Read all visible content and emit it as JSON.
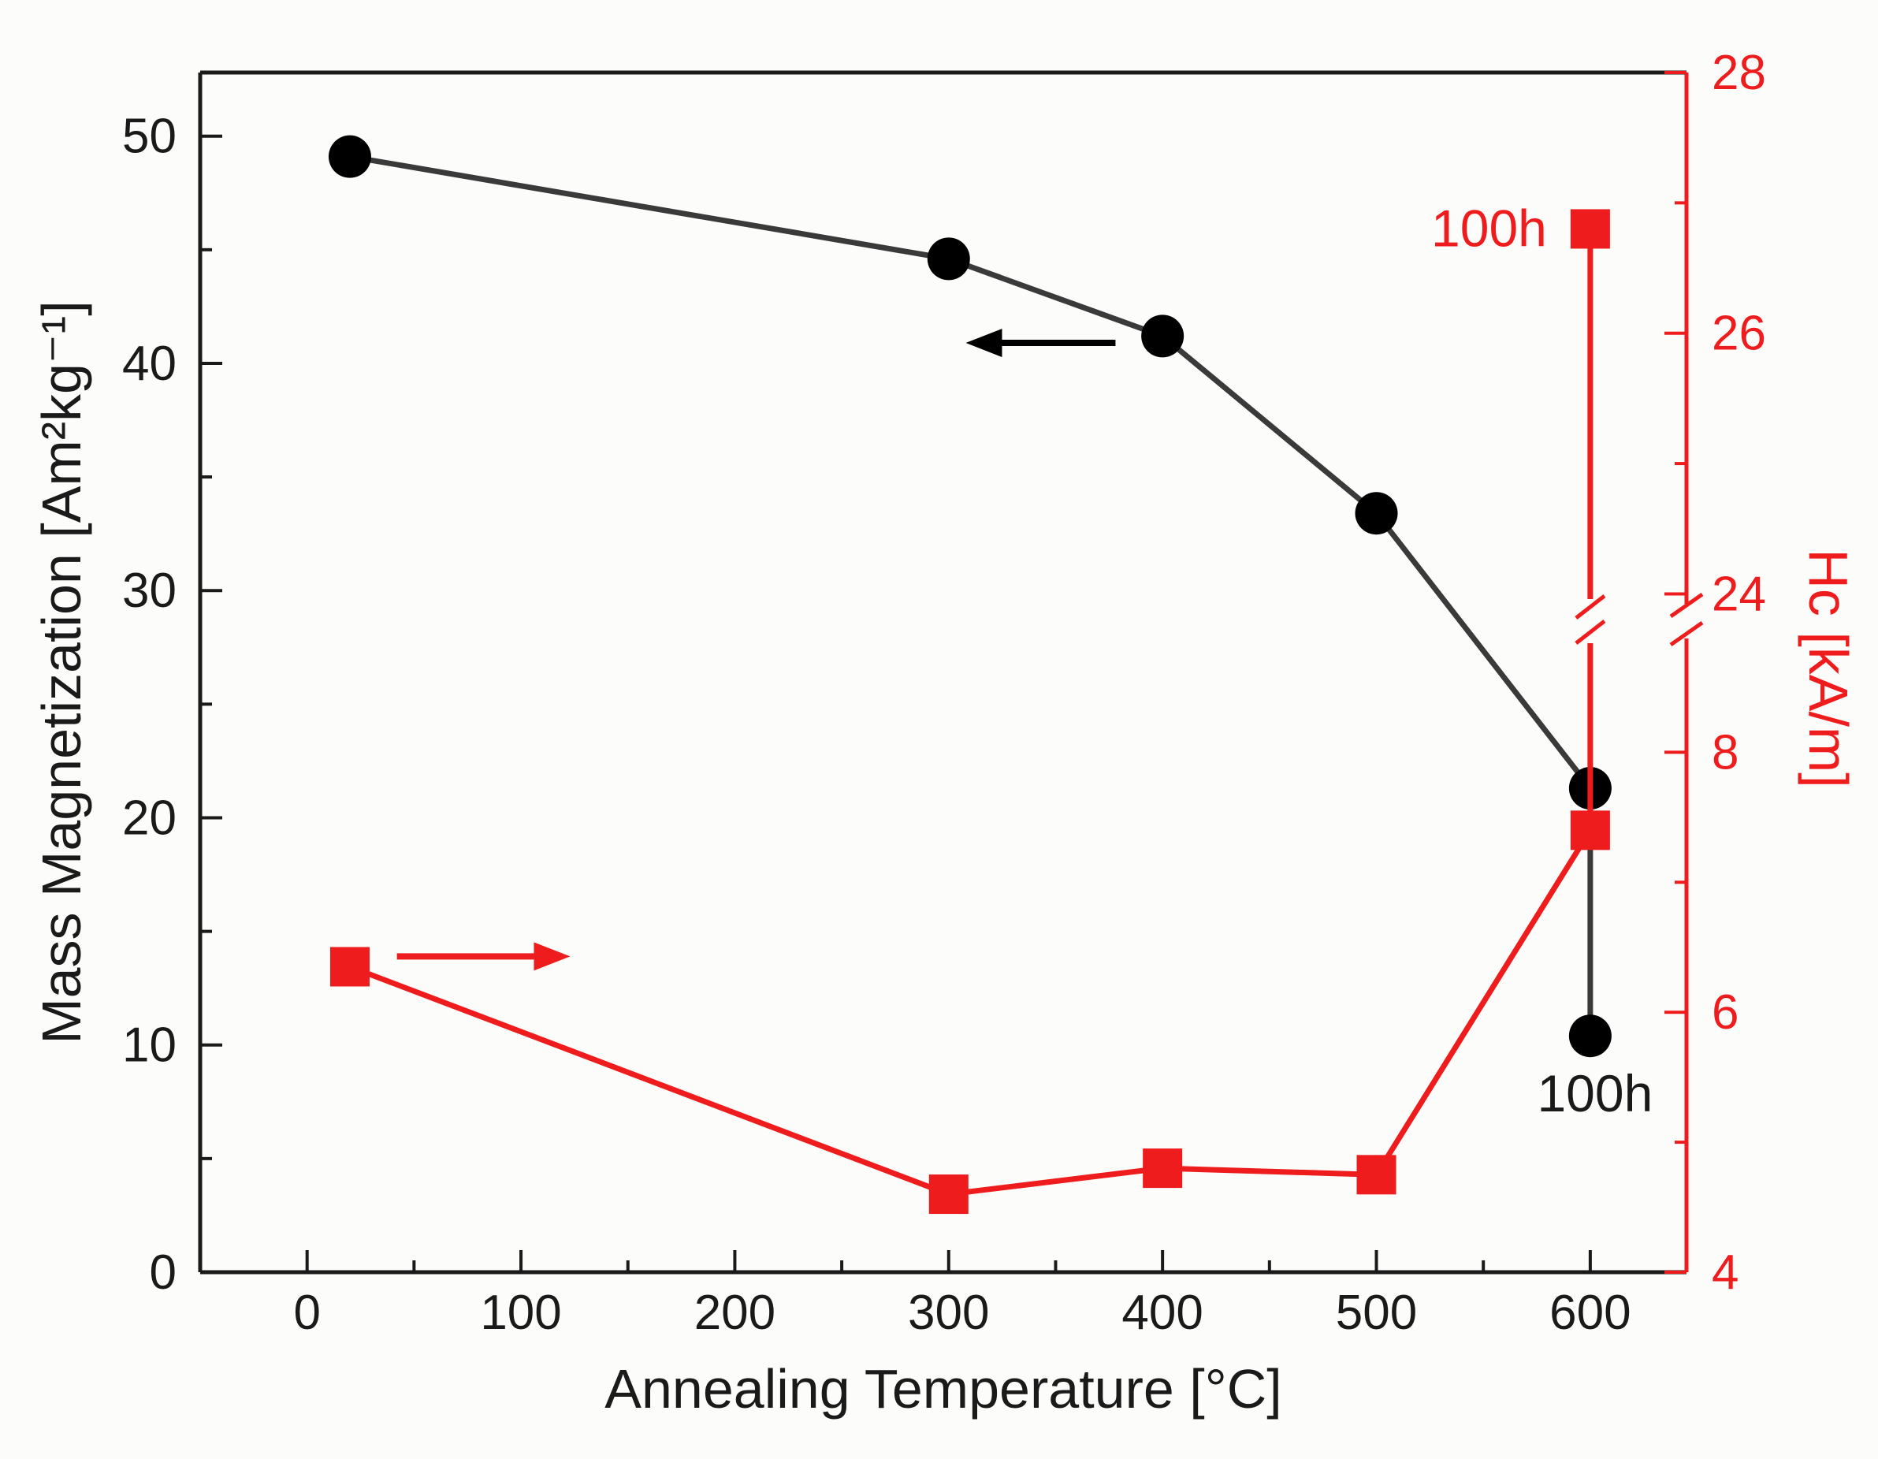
{
  "chart_data": {
    "type": "line",
    "title": "",
    "xlabel": "Annealing Temperature [°C]",
    "ylabel_left": "Mass Magnetization [Am²kg⁻¹]",
    "ylabel_right": "Hc [kA/m]",
    "background": "#fcfcfa",
    "legend": "none",
    "grid": false,
    "axes": {
      "x": {
        "min": -50,
        "max": 645,
        "major_ticks": [
          0,
          100,
          200,
          300,
          400,
          500,
          600
        ],
        "minor_ticks": [
          50,
          150,
          250,
          350,
          450,
          550
        ],
        "color": "#1a1a1a"
      },
      "y_left": {
        "min": 0,
        "max": 52.8,
        "major_ticks": [
          0,
          10,
          20,
          30,
          40,
          50
        ],
        "minor_ticks": [
          5,
          15,
          25,
          35,
          45
        ],
        "color": "#1a1a1a"
      },
      "y_right": {
        "color": "#ee1c1c",
        "broken": true,
        "lower": {
          "min": 4,
          "max": 8.9,
          "major_ticks": [
            4,
            6,
            8
          ],
          "minor_ticks": [
            5,
            7
          ]
        },
        "upper": {
          "min": 23.9,
          "max": 28,
          "major_ticks": [
            24,
            26,
            28
          ],
          "minor_ticks": [
            25,
            27
          ]
        }
      }
    },
    "series": [
      {
        "name": "mass-magnetization",
        "axis": "left",
        "color": "#3a3a3a",
        "marker": "circle",
        "marker_color": "#000000",
        "x": [
          20,
          300,
          400,
          500,
          600,
          600
        ],
        "y": [
          49.1,
          44.6,
          41.2,
          33.4,
          21.3,
          10.4
        ]
      },
      {
        "name": "coercivity-hc",
        "axis": "right",
        "color": "#ee1c1c",
        "marker": "square",
        "marker_color": "#ee1c1c",
        "x": [
          20,
          300,
          400,
          500,
          600,
          600
        ],
        "y": [
          6.35,
          4.6,
          4.8,
          4.75,
          7.4,
          26.8
        ]
      }
    ],
    "annotations": [
      {
        "id": "hc-100h-label",
        "text": "100h",
        "color": "#ee1c1c",
        "axis": "right",
        "x": 600,
        "y": 26.8,
        "placement": "left"
      },
      {
        "id": "mag-100h-label",
        "text": "100h",
        "color": "#1a1a1a",
        "axis": "left",
        "x": 600,
        "y": 10.4,
        "placement": "below"
      }
    ],
    "arrows": [
      {
        "id": "left-axis-arrow",
        "color": "#000000",
        "from": [
          378,
          40.9
        ],
        "to": [
          308,
          40.9
        ]
      },
      {
        "id": "right-axis-arrow",
        "color": "#ee1c1c",
        "from": [
          42,
          13.9
        ],
        "to": [
          123,
          13.9
        ]
      }
    ]
  }
}
